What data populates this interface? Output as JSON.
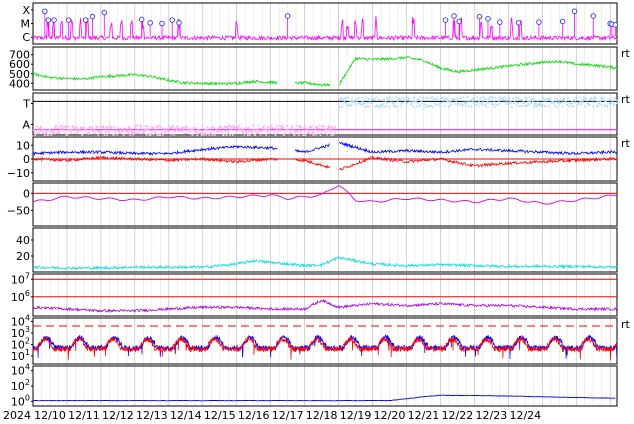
{
  "chart_data": {
    "type": "line",
    "x_start": "2024-12-09",
    "x_tick_labels": [
      "2024",
      "12/10",
      "12/11",
      "12/12",
      "12/13",
      "12/14",
      "12/15",
      "12/16",
      "12/17",
      "12/18",
      "12/19",
      "12/20",
      "12/21",
      "12/22",
      "12/23",
      "12/24"
    ],
    "grid": true,
    "panels": [
      {
        "id": "xray_flares",
        "yticks": [
          {
            "label": "X"
          },
          {
            "label": "M"
          },
          {
            "label": "C"
          }
        ],
        "ylim": [
          0,
          3
        ],
        "right_marker": "",
        "series": [
          {
            "color": "#ff00ff",
            "style": "spiky",
            "base": 0.45,
            "jitter": 0.15,
            "x": [
              0.45,
              0.6,
              0.85,
              1.15,
              1.4,
              1.6,
              2.3,
              2.6,
              2.9,
              3.25,
              4.3,
              6.0,
              9.1,
              9.25,
              9.5,
              9.7,
              10.1,
              11.2,
              12.4,
              12.6,
              13.2,
              13.5,
              14.1,
              14.35
            ]
          }
        ],
        "flare_markers": [
          {
            "x": 0.35,
            "level": 2.4
          },
          {
            "x": 0.45,
            "level": 1.75
          },
          {
            "x": 0.62,
            "level": 1.75
          },
          {
            "x": 1.05,
            "level": 1.75
          },
          {
            "x": 1.55,
            "level": 1.75
          },
          {
            "x": 1.75,
            "level": 2.0
          },
          {
            "x": 2.1,
            "level": 2.3
          },
          {
            "x": 3.2,
            "level": 1.8
          },
          {
            "x": 3.45,
            "level": 1.55
          },
          {
            "x": 3.8,
            "level": 1.5
          },
          {
            "x": 4.1,
            "level": 1.75
          },
          {
            "x": 4.3,
            "level": 1.55
          },
          {
            "x": 7.5,
            "level": 2.05
          },
          {
            "x": 12.15,
            "level": 1.75
          },
          {
            "x": 12.4,
            "level": 2.05
          },
          {
            "x": 12.55,
            "level": 1.65
          },
          {
            "x": 13.15,
            "level": 2.0
          },
          {
            "x": 13.4,
            "level": 1.85
          },
          {
            "x": 13.75,
            "level": 1.6
          },
          {
            "x": 14.3,
            "level": 1.55
          },
          {
            "x": 14.9,
            "level": 1.6
          },
          {
            "x": 15.6,
            "level": 1.65
          },
          {
            "x": 15.95,
            "level": 2.4
          },
          {
            "x": 16.5,
            "level": 2.05
          },
          {
            "x": 17.0,
            "level": 1.5
          },
          {
            "x": 17.05,
            "level": 1.45
          },
          {
            "x": 17.15,
            "level": 1.4
          }
        ]
      },
      {
        "id": "solar_wind_speed",
        "yticks": [
          {
            "label": "700",
            "value": 700
          },
          {
            "label": "600",
            "value": 600
          },
          {
            "label": "500",
            "value": 500
          },
          {
            "label": "400",
            "value": 400
          }
        ],
        "ylim": [
          330,
          780
        ],
        "right_marker": "rt",
        "series": [
          {
            "color": "#00dd00",
            "style": "noisy",
            "x": [
              0,
              0.5,
              1,
              1.5,
              2,
              2.5,
              3,
              3.5,
              4,
              4.5,
              5,
              5.5,
              6,
              6.5,
              7,
              7.5,
              8,
              8.5,
              9,
              9.5,
              10,
              10.5,
              11,
              11.5,
              12,
              12.5,
              13,
              13.5,
              14,
              14.5,
              15,
              15.5,
              16,
              16.5,
              17,
              17.2
            ],
            "values": [
              500,
              460,
              450,
              445,
              470,
              480,
              490,
              470,
              430,
              405,
              400,
              395,
              400,
              420,
              410,
              400,
              405,
              385,
              380,
              660,
              650,
              655,
              670,
              640,
              560,
              520,
              540,
              560,
              580,
              600,
              620,
              630,
              600,
              590,
              570,
              560
            ],
            "gaps": [
              [
                7.2,
                7.7
              ],
              [
                8.75,
                9.0
              ]
            ]
          }
        ]
      },
      {
        "id": "magnetic_field_direction",
        "yticks": [
          {
            "label": "T"
          },
          {
            "label": "A"
          }
        ],
        "ylim": [
          0,
          2
        ],
        "right_marker": "rt",
        "series": [
          {
            "color": "#ffaaee",
            "style": "scatter",
            "x_range": [
              0,
              8.9
            ],
            "level": 0.25,
            "spread": 0.12
          },
          {
            "color": "#aaddff",
            "style": "scatter",
            "x_range": [
              9.0,
              17.2
            ],
            "level": 1.6,
            "spread": 0.12
          }
        ],
        "hlines": [
          {
            "value": 0.25,
            "color": "#ff00ff"
          },
          {
            "value": 1.6,
            "color": "#000000"
          }
        ]
      },
      {
        "id": "imf_bt_bz",
        "yticks": [
          {
            "label": "10",
            "value": 10
          },
          {
            "label": "0",
            "value": 0
          },
          {
            "label": "−10",
            "value": -10
          }
        ],
        "ylim": [
          -16,
          16
        ],
        "right_marker": "rt",
        "series": [
          {
            "color": "#0000ff",
            "style": "noisy",
            "x": [
              0,
              1,
              2,
              3,
              4,
              5,
              6,
              7,
              8,
              9,
              10,
              11,
              12,
              13,
              14,
              15,
              16,
              17,
              17.2
            ],
            "values": [
              4,
              5,
              5,
              4,
              4,
              7,
              9,
              8,
              5,
              12,
              5,
              6,
              5,
              7,
              6,
              5,
              4,
              5,
              5
            ],
            "gaps": [
              [
                7.2,
                7.7
              ],
              [
                8.75,
                9.0
              ]
            ]
          },
          {
            "color": "#ff0000",
            "style": "noisy",
            "x": [
              0,
              1,
              2,
              3,
              4,
              5,
              6,
              7,
              8,
              9,
              10,
              11,
              12,
              13,
              14,
              15,
              16,
              17,
              17.2
            ],
            "values": [
              0,
              -1,
              1,
              0,
              -1,
              0,
              -2,
              0,
              -1,
              -8,
              1,
              -2,
              0,
              -5,
              -3,
              -2,
              -1,
              0,
              0
            ],
            "gaps": [
              [
                7.2,
                7.7
              ],
              [
                8.75,
                9.0
              ]
            ]
          }
        ],
        "hlines": [
          {
            "value": 0,
            "color": "#ff0000"
          }
        ]
      },
      {
        "id": "dst_index",
        "yticks": [
          {
            "label": "0",
            "value": 0
          },
          {
            "label": "−50",
            "value": -50
          }
        ],
        "ylim": [
          -95,
          30
        ],
        "right_marker": "",
        "series": [
          {
            "color": "#dd00dd",
            "style": "smooth",
            "x": [
              0,
              1,
              2,
              3,
              4,
              5,
              6,
              7,
              7.5,
              8,
              8.5,
              9,
              9.5,
              10,
              11,
              12,
              13,
              14,
              15,
              16,
              17.2
            ],
            "values": [
              -25,
              -10,
              -15,
              -20,
              -10,
              -15,
              -10,
              -5,
              -15,
              -10,
              -5,
              25,
              -20,
              -25,
              -15,
              -20,
              -25,
              -15,
              -30,
              -20,
              -5
            ]
          }
        ],
        "hlines": [
          {
            "value": 0,
            "color": "#ff0000"
          }
        ]
      },
      {
        "id": "kp_index",
        "yticks": [
          {
            "label": "40",
            "value": 40
          },
          {
            "label": "20",
            "value": 20
          }
        ],
        "ylim": [
          0,
          55
        ],
        "right_marker": "",
        "series": [
          {
            "color": "#00dddd",
            "style": "noisy",
            "x": [
              0,
              1,
              2,
              3,
              4,
              5,
              6,
              6.5,
              7,
              7.5,
              8,
              8.5,
              9,
              9.5,
              10,
              11,
              12,
              13,
              14,
              15,
              16,
              17.2
            ],
            "values": [
              6,
              5,
              5,
              6,
              6,
              6,
              10,
              14,
              12,
              10,
              8,
              9,
              18,
              14,
              10,
              8,
              9,
              8,
              7,
              7,
              7,
              6
            ]
          }
        ]
      },
      {
        "id": "proton_flux",
        "yticks": [
          {
            "label": "10^7",
            "value": 7
          },
          {
            "label": "10^6",
            "value": 6
          }
        ],
        "ylim": [
          4.9,
          7.3
        ],
        "right_marker": "",
        "series": [
          {
            "color": "#aa00dd",
            "style": "noisy",
            "x": [
              0,
              1,
              2,
              3,
              4,
              5,
              6,
              7,
              8,
              8.5,
              9,
              9.5,
              10,
              11,
              12,
              13,
              14,
              15,
              16,
              17.2
            ],
            "values": [
              5.4,
              5.3,
              5.2,
              5.2,
              5.3,
              5.4,
              5.4,
              5.3,
              5.3,
              5.8,
              5.4,
              5.5,
              5.6,
              5.5,
              5.6,
              5.5,
              5.5,
              5.4,
              5.3,
              5.3
            ]
          }
        ],
        "hlines": [
          {
            "value": 7,
            "color": "#ff0000"
          },
          {
            "value": 6,
            "color": "#ff0000"
          }
        ]
      },
      {
        "id": "electron_flux",
        "yticks": [
          {
            "label": "10^4",
            "value": 4
          },
          {
            "label": "10^3",
            "value": 3
          },
          {
            "label": "10^2",
            "value": 2
          },
          {
            "label": "10^1",
            "value": 1
          }
        ],
        "ylim": [
          0.3,
          4.3
        ],
        "right_marker": "rt",
        "series": [
          {
            "color": "#0000ff",
            "style": "diurnal",
            "base": 1.7,
            "amp": 0.9,
            "x_range": [
              0,
              17.2
            ]
          },
          {
            "color": "#ff0000",
            "style": "diurnal",
            "base": 1.6,
            "amp": 0.85,
            "x_range": [
              0,
              17.2
            ]
          }
        ],
        "hlines": [
          {
            "value": 3.6,
            "color": "#ff0000",
            "dashed": true
          }
        ]
      },
      {
        "id": "high_energy_proton_flux",
        "yticks": [
          {
            "label": "10^4",
            "value": 4
          },
          {
            "label": "10^2",
            "value": 2
          },
          {
            "label": "10^0",
            "value": 0
          }
        ],
        "ylim": [
          -0.6,
          4.6
        ],
        "right_marker": "",
        "series": [
          {
            "color": "#0000ff",
            "style": "step",
            "x": [
              0,
              10.5,
              11.5,
              12,
              13,
              14,
              15,
              16,
              17.2
            ],
            "values": [
              0.1,
              0.1,
              0.6,
              0.8,
              0.75,
              0.7,
              0.6,
              0.5,
              0.4
            ]
          }
        ]
      }
    ]
  }
}
